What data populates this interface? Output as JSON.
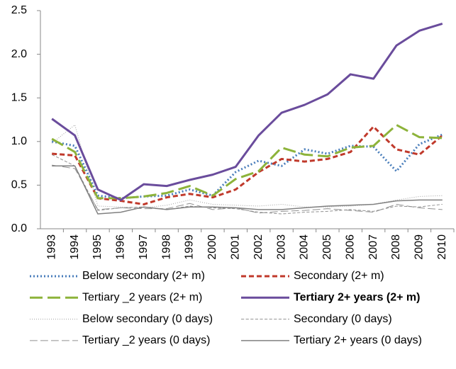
{
  "chart_data": {
    "type": "line",
    "categories": [
      "1993",
      "1994",
      "1995",
      "1996",
      "1997",
      "1998",
      "1999",
      "2000",
      "2001",
      "2002",
      "2003",
      "2004",
      "2005",
      "2006",
      "2007",
      "2008",
      "2009",
      "2010"
    ],
    "ylim": [
      0,
      2.5
    ],
    "yticks": [
      {
        "value": 0,
        "label": "0.0"
      },
      0.5,
      {
        "value": 1,
        "label": "1.0"
      },
      1.5,
      {
        "value": 2,
        "label": "2.0"
      },
      2.5
    ],
    "grid": false,
    "legend": "bottom",
    "series": [
      {
        "name": "Below secondary (2+ m)",
        "color": "#4a7ebb",
        "dash": "dotted",
        "width": 3,
        "values": [
          1.0,
          0.95,
          0.38,
          0.35,
          0.37,
          0.38,
          0.45,
          0.38,
          0.65,
          0.78,
          0.72,
          0.91,
          0.86,
          0.95,
          0.94,
          0.66,
          0.97,
          1.08
        ]
      },
      {
        "name": "Secondary (2+ m)",
        "color": "#c0392b",
        "dash": "dashed",
        "width": 3,
        "values": [
          0.86,
          0.84,
          0.35,
          0.32,
          0.28,
          0.36,
          0.4,
          0.36,
          0.45,
          0.65,
          0.8,
          0.77,
          0.8,
          0.88,
          1.17,
          0.91,
          0.85,
          1.07
        ]
      },
      {
        "name": "Tertiary _2 years (2+ m)",
        "color": "#8db33a",
        "dash": "long",
        "width": 3,
        "values": [
          1.03,
          0.88,
          0.35,
          0.35,
          0.37,
          0.41,
          0.49,
          0.38,
          0.57,
          0.66,
          0.93,
          0.85,
          0.83,
          0.93,
          0.95,
          1.19,
          1.05,
          1.04
        ]
      },
      {
        "name": "Tertiary 2+ years (2+ m)",
        "color": "#6a4c9c",
        "dash": "solid",
        "width": 3,
        "bold": true,
        "values": [
          1.26,
          1.07,
          0.45,
          0.33,
          0.51,
          0.49,
          0.56,
          0.62,
          0.71,
          1.07,
          1.33,
          1.42,
          1.54,
          1.77,
          1.72,
          2.1,
          2.27,
          2.35
        ]
      },
      {
        "name": "Below secondary (0 days)",
        "color": "#a0a0a0",
        "dash": "dotted",
        "width": 1,
        "values": [
          0.98,
          1.19,
          0.26,
          0.25,
          0.24,
          0.27,
          0.33,
          0.28,
          0.27,
          0.26,
          0.28,
          0.25,
          0.25,
          0.26,
          0.28,
          0.33,
          0.37,
          0.38
        ]
      },
      {
        "name": "Secondary (0 days)",
        "color": "#909090",
        "dash": "dashed",
        "width": 1,
        "values": [
          0.85,
          0.72,
          0.21,
          0.24,
          0.25,
          0.22,
          0.26,
          0.24,
          0.23,
          0.19,
          0.17,
          0.19,
          0.2,
          0.22,
          0.2,
          0.26,
          0.25,
          0.28
        ]
      },
      {
        "name": "Tertiary _2 years (0 days)",
        "color": "#909090",
        "dash": "long",
        "width": 1,
        "values": [
          0.73,
          0.69,
          0.22,
          0.24,
          0.23,
          0.23,
          0.29,
          0.22,
          0.24,
          0.18,
          0.2,
          0.21,
          0.23,
          0.21,
          0.19,
          0.28,
          0.24,
          0.22
        ]
      },
      {
        "name": "Tertiary 2+ years (0 days)",
        "color": "#808080",
        "dash": "solid",
        "width": 1.5,
        "values": [
          0.72,
          0.72,
          0.17,
          0.19,
          0.25,
          0.22,
          0.25,
          0.25,
          0.24,
          0.22,
          0.22,
          0.24,
          0.26,
          0.27,
          0.28,
          0.32,
          0.33,
          0.33
        ]
      }
    ]
  }
}
